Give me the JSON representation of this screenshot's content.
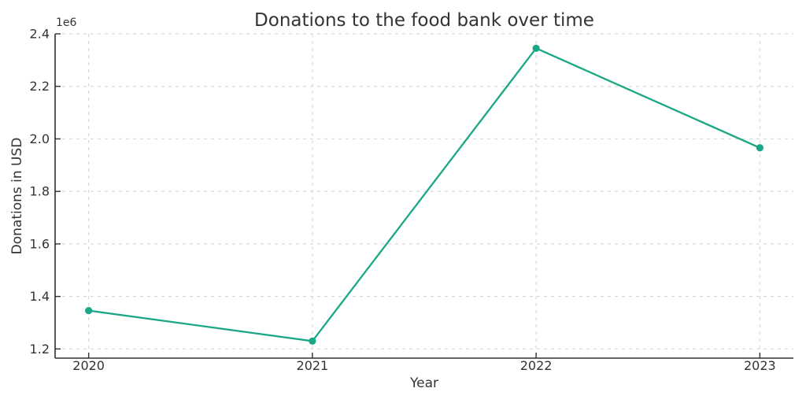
{
  "chart_data": {
    "type": "line",
    "title": "Donations to the food bank over time",
    "xlabel": "Year",
    "ylabel": "Donations in USD",
    "y_offset_label": "1e6",
    "x": [
      2020,
      2021,
      2022,
      2023
    ],
    "xtick_labels": [
      "2020",
      "2021",
      "2022",
      "2023"
    ],
    "series": [
      {
        "name": "Donations",
        "values": [
          1346000,
          1230000,
          2345000,
          1966000
        ]
      }
    ],
    "yticks": [
      1200000,
      1400000,
      1600000,
      1800000,
      2000000,
      2200000,
      2400000
    ],
    "ytick_labels": [
      "1.2",
      "1.4",
      "1.6",
      "1.8",
      "2.0",
      "2.2",
      "2.4"
    ],
    "xlim": [
      2019.85,
      2023.15
    ],
    "ylim": [
      1165000,
      2400000
    ],
    "grid": true,
    "grid_linestyle": "dashed",
    "legend": "none",
    "marker": "circle",
    "colors": {
      "line": "#1aa786",
      "marker": "#1aa786",
      "grid": "#d9d9d9",
      "spine": "#303030",
      "text": "#333333",
      "background": "#ffffff"
    }
  }
}
